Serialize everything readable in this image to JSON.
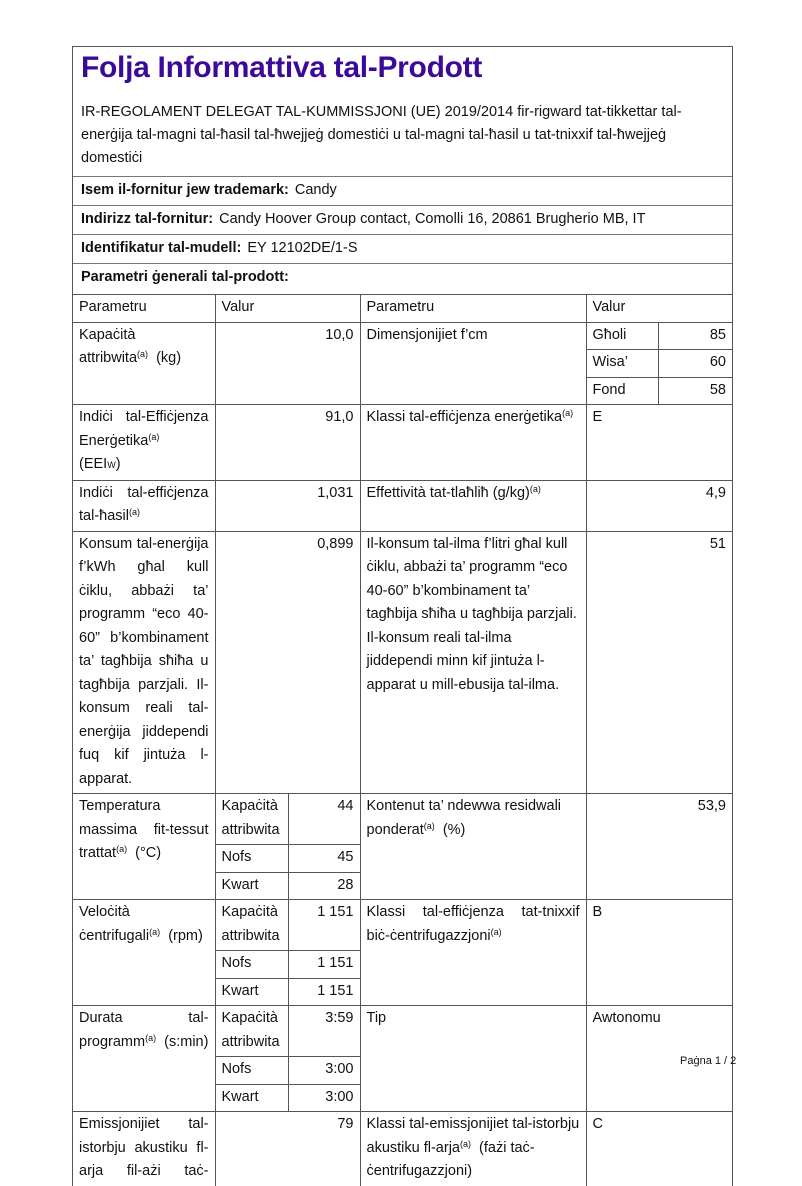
{
  "title": "Folja Informattiva tal-Prodott",
  "subtitle": "IR-REGOLAMENT DELEGAT TAL-KUMMISSJONI (UE) 2019/2014 fir-rigward tat-tikkettar tal-enerġija tal-magni tal-ħasil tal-ħwejjeġ domestiċi u tal-magni tal-ħasil u tat-tnixxif tal-ħwejjeġ domestiċi",
  "supplier": {
    "label": "Isem il-fornitur jew trademark:",
    "value": "Candy"
  },
  "address": {
    "label": "Indirizz tal-fornitur:",
    "value": "Candy Hoover Group contact, Comolli 16, 20861 Brugherio MB, IT"
  },
  "model": {
    "label": "Identifikatur tal-mudell:",
    "value": "EY 12102DE/1-S"
  },
  "general_heading": "Parametri ġenerali tal-prodott:",
  "sup": "(a)",
  "table": {
    "headers": [
      "Parametru",
      "Valur",
      "Parametru",
      "Valur"
    ],
    "capacity": {
      "label": "Kapaċità attribwita",
      "unit": "(kg)",
      "value": "10,0"
    },
    "dimensions": {
      "label": "Dimensjonijiet f’cm",
      "rows": [
        {
          "k": "Għoli",
          "v": "85"
        },
        {
          "k": "Wisa’",
          "v": "60"
        },
        {
          "k": "Fond",
          "v": "58"
        }
      ]
    },
    "eei": {
      "label": "Indiċi tal-Effiċjenza Enerġetika",
      "unit_pre": "(EEI",
      "unit_sub": "W",
      "unit_post": ")",
      "value": "91,0"
    },
    "energy_class": {
      "label": "Klassi tal-effiċjenza enerġetika",
      "value": "E"
    },
    "washing_index": {
      "label": "Indiċi tal-effiċjenza tal-ħasil",
      "value": "1,031"
    },
    "rinsing": {
      "label": "Effettività tat-tlaħliħ (g/kg)",
      "value": "4,9"
    },
    "energy_consumption": {
      "label": "Konsum tal-enerġija f’kWh għal kull ċiklu, abbażi ta’ programm “eco 40-60” b’kombinament ta’ tagħbija sħiħa u tagħbija parzjali. Il-konsum reali tal-enerġija jiddependi fuq kif jintuża l-apparat.",
      "value": "0,899"
    },
    "water_consumption": {
      "label": "Il-konsum tal-ilma f’litri għal kull ċiklu, abbażi ta’ programm “eco 40-60” b’kombinament ta’ tagħbija sħiħa u tagħbija parzjali. Il-konsum reali tal-ilma jiddependi minn kif jintuża l-apparat u mill-ebusija tal-ilma.",
      "value": "51"
    },
    "temperature": {
      "label": "Temperatura massima fit-tessut trattat",
      "unit": "(°C)",
      "rows": [
        {
          "k": "Kapaċità attribwita",
          "v": "44"
        },
        {
          "k": "Nofs",
          "v": "45"
        },
        {
          "k": "Kwart",
          "v": "28"
        }
      ]
    },
    "moisture": {
      "label": "Kontenut ta’ ndewwa residwali ponderat",
      "unit": "(%)",
      "value": "53,9"
    },
    "spin_speed": {
      "label": "Veloċità ċentrifugali",
      "unit": "(rpm)",
      "rows": [
        {
          "k": "Kapaċità attribwita",
          "v": "1 151"
        },
        {
          "k": "Nofs",
          "v": "1 151"
        },
        {
          "k": "Kwart",
          "v": "1 151"
        }
      ]
    },
    "spin_class": {
      "label": "Klassi tal-effiċjenza tat-tnixxif biċ-ċentrifugazzjoni",
      "value": "B"
    },
    "duration": {
      "label": "Durata tal-programm",
      "unit": "(s:min)",
      "rows": [
        {
          "k": "Kapaċità attribwita",
          "v": "3:59"
        },
        {
          "k": "Nofs",
          "v": "3:00"
        },
        {
          "k": "Kwart",
          "v": "3:00"
        }
      ]
    },
    "type": {
      "label": "Tip",
      "value": "Awtonomu"
    },
    "noise": {
      "label": "Emissjonijiet tal-istorbju akustiku fl-arja fil-ażi taċ-",
      "value": "79"
    },
    "noise_class": {
      "label": "Klassi tal-emissjonijiet tal-istorbju akustiku fl-arja",
      "unit": "(fażi taċ-ċentrifugazzjoni)",
      "value": "C"
    }
  },
  "footer": "Paġna 1 / 2"
}
